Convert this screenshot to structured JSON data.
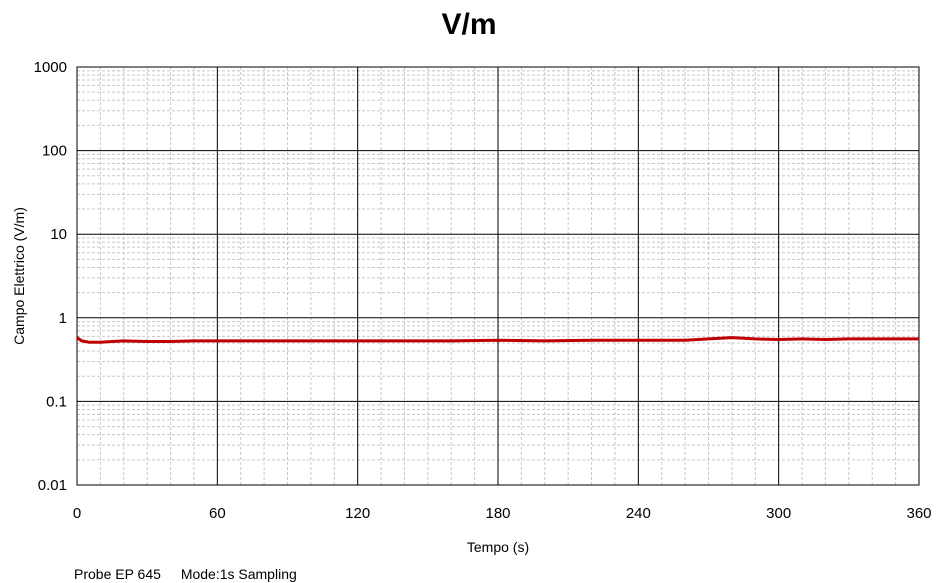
{
  "chart_data": {
    "type": "line",
    "title": "V/m",
    "xlabel": "Tempo (s)",
    "ylabel": "Campo Elettrico (V/m)",
    "xlim": [
      0,
      360
    ],
    "ylim": [
      0.01,
      1000
    ],
    "yscale": "log",
    "grid": true,
    "x_ticks": [
      "0",
      "60",
      "120",
      "180",
      "240",
      "300",
      "360"
    ],
    "y_ticks": [
      "0.01",
      "0.1",
      "1",
      "10",
      "100",
      "1000"
    ],
    "series_color": "#c00000",
    "series": [
      {
        "x": [
          0,
          2,
          5,
          10,
          15,
          20,
          30,
          40,
          50,
          60,
          80,
          100,
          120,
          140,
          160,
          180,
          200,
          220,
          240,
          260,
          270,
          280,
          290,
          300,
          310,
          320,
          330,
          340,
          350,
          360
        ],
        "values": [
          0.58,
          0.53,
          0.51,
          0.51,
          0.52,
          0.53,
          0.52,
          0.52,
          0.53,
          0.53,
          0.53,
          0.53,
          0.53,
          0.53,
          0.53,
          0.54,
          0.53,
          0.54,
          0.54,
          0.54,
          0.56,
          0.58,
          0.56,
          0.55,
          0.56,
          0.55,
          0.56,
          0.56,
          0.56,
          0.56
        ]
      }
    ]
  },
  "footer": {
    "probe": "Probe EP 645",
    "mode": "Mode:1s Sampling"
  }
}
